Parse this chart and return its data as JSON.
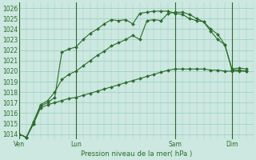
{
  "title": "Pression niveau de la mer( hPa )",
  "bg_color": "#cce8e0",
  "grid_color": "#99ccbb",
  "line_color": "#2d6b2d",
  "vline_color": "#336633",
  "ylim": [
    1013.5,
    1026.5
  ],
  "yticks": [
    1014,
    1015,
    1016,
    1017,
    1018,
    1019,
    1020,
    1021,
    1022,
    1023,
    1024,
    1025,
    1026
  ],
  "day_labels": [
    "Ven",
    "Lun",
    "Sam",
    "Dim"
  ],
  "day_positions": [
    0,
    8,
    22,
    30
  ],
  "xlim": [
    0,
    33
  ],
  "line1_x": [
    0,
    1,
    2,
    3,
    4,
    5,
    6,
    7,
    8,
    9,
    10,
    11,
    12,
    13,
    14,
    15,
    16,
    17,
    18,
    19,
    20,
    21,
    22,
    23,
    24,
    25,
    26,
    27,
    28,
    29,
    30,
    31,
    32
  ],
  "line1": [
    1014.0,
    1013.7,
    1015.2,
    1016.8,
    1017.2,
    1018.0,
    1019.2,
    1019.7,
    1020.0,
    1020.5,
    1021.0,
    1021.5,
    1021.9,
    1022.4,
    1022.7,
    1023.0,
    1023.4,
    1023.0,
    1024.8,
    1024.9,
    1024.8,
    1025.5,
    1025.6,
    1025.6,
    1025.4,
    1025.0,
    1024.7,
    1023.8,
    1023.0,
    1022.5,
    1020.2,
    1020.3,
    1020.2
  ],
  "line2_x": [
    0,
    1,
    2,
    3,
    4,
    5,
    6,
    7,
    8,
    9,
    10,
    11,
    12,
    13,
    14,
    15,
    16,
    17,
    18,
    19,
    20,
    21,
    22,
    23,
    24,
    25,
    26,
    27,
    28,
    29,
    30,
    31,
    32
  ],
  "line2": [
    1014.0,
    1013.7,
    1015.0,
    1016.7,
    1017.0,
    1017.5,
    1021.8,
    1022.1,
    1022.3,
    1023.0,
    1023.6,
    1024.0,
    1024.5,
    1024.9,
    1024.8,
    1024.9,
    1024.5,
    1025.5,
    1025.6,
    1025.7,
    1025.7,
    1025.7,
    1025.5,
    1025.4,
    1025.0,
    1024.8,
    1024.7,
    1024.0,
    1023.5,
    1022.5,
    1020.1,
    1020.1,
    1020.0
  ],
  "line3_x": [
    0,
    1,
    2,
    3,
    4,
    5,
    6,
    7,
    8,
    9,
    10,
    11,
    12,
    13,
    14,
    15,
    16,
    17,
    18,
    19,
    20,
    21,
    22,
    23,
    24,
    25,
    26,
    27,
    28,
    29,
    30,
    31,
    32
  ],
  "line3": [
    1014.0,
    1013.7,
    1015.0,
    1016.5,
    1016.8,
    1017.0,
    1017.2,
    1017.4,
    1017.5,
    1017.7,
    1017.9,
    1018.1,
    1018.3,
    1018.5,
    1018.7,
    1018.9,
    1019.1,
    1019.3,
    1019.5,
    1019.7,
    1019.9,
    1020.1,
    1020.2,
    1020.2,
    1020.2,
    1020.2,
    1020.2,
    1020.1,
    1020.1,
    1020.0,
    1020.0,
    1020.0,
    1020.0
  ]
}
